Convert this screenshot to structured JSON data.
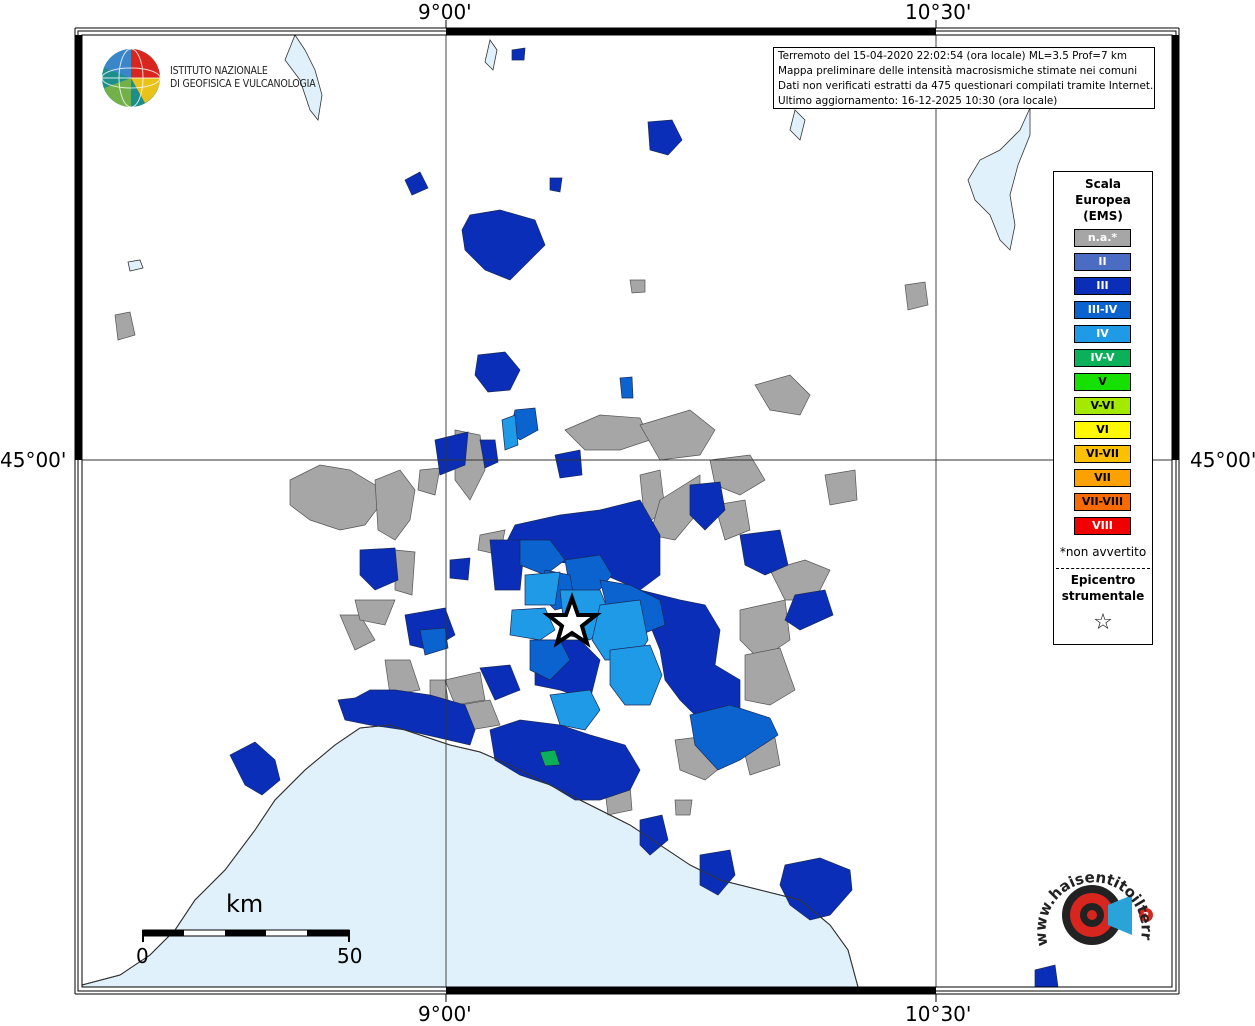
{
  "header": {
    "info_lines": [
      "Terremoto del 15-04-2020 22:02:54 (ora locale) ML=3.5 Prof=7 km",
      "Mappa preliminare delle intensità macrosismiche stimate nei comuni",
      "Dati non verificati estratti da 475 questionari compilati tramite Internet.",
      "Ultimo aggiornamento: 16-12-2025 10:30 (ora locale)"
    ]
  },
  "coords": {
    "top_left": "9°00'",
    "top_right": "10°30'",
    "bottom_left": "9°00'",
    "bottom_right": "10°30'",
    "left_lat": "45°00'",
    "right_lat": "45°00'"
  },
  "logo_ingv": {
    "line1": "ISTITUTO NAZIONALE",
    "line2": "DI GEOFISICA E VULCANOLOGIA"
  },
  "logo_hsit": {
    "text": "www.haisentitoilterremoto.it"
  },
  "legend": {
    "title_lines": [
      "Scala",
      "Europea",
      "(EMS)"
    ],
    "items": [
      {
        "label": "n.a.*",
        "color": "#a6a6a6"
      },
      {
        "label": "II",
        "color": "#4a6cc2"
      },
      {
        "label": "III",
        "color": "#0a2eb8"
      },
      {
        "label": "III-IV",
        "color": "#0b63cf"
      },
      {
        "label": "IV",
        "color": "#1e9ae6"
      },
      {
        "label": "IV-V",
        "color": "#0cb058"
      },
      {
        "label": "V",
        "color": "#15e000"
      },
      {
        "label": "V-VI",
        "color": "#a3ea00"
      },
      {
        "label": "VI",
        "color": "#fef900"
      },
      {
        "label": "VI-VII",
        "color": "#fbc000"
      },
      {
        "label": "VII",
        "color": "#fba100"
      },
      {
        "label": "VII-VIII",
        "color": "#f96b00"
      },
      {
        "label": "VIII",
        "color": "#f00000"
      }
    ],
    "note": "*non avvertito",
    "epicenter_lines": [
      "Epicentro",
      "strumentale"
    ],
    "epicenter_symbol": "☆"
  },
  "scale_bar": {
    "unit": "km",
    "start": "0",
    "end": "50"
  },
  "colors": {
    "sea": "#e1f1fb",
    "na": "#a6a6a6",
    "iii": "#0a2eb8",
    "iii_iv": "#0b63cf",
    "iv": "#1e9ae6",
    "iv_v": "#0cb058"
  }
}
